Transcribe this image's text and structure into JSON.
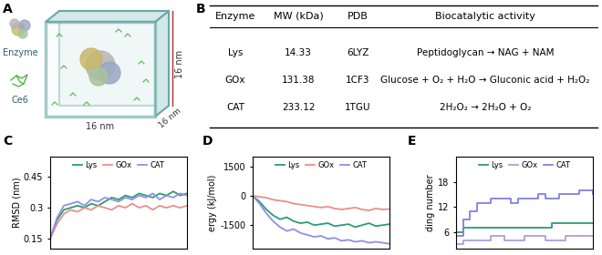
{
  "panels": {
    "A": {
      "label": "A",
      "type": "diagram",
      "enzyme_label": "Enzyme",
      "dye_label": "Ce6",
      "box_dimensions": [
        "16 nm",
        "16 nm",
        "16 nm"
      ]
    },
    "B": {
      "label": "B",
      "type": "table",
      "columns": [
        "Enzyme",
        "MW (kDa)",
        "PDB",
        "Biocatalytic activity"
      ],
      "rows": [
        [
          "Lys",
          "14.33",
          "6LYZ",
          "Peptidoglycan → NAG + NAM"
        ],
        [
          "GOx",
          "131.38",
          "1CF3",
          "Glucose + O₂ + H₂O → Gluconic acid + H₂O₂"
        ],
        [
          "CAT",
          "233.12",
          "1TGU",
          "2H₂O₂ → 2H₂O + O₂"
        ]
      ]
    }
  },
  "chart_data": [
    {
      "type": "line",
      "title": "C",
      "y_label": "RMSD (nm)",
      "x": [
        0,
        1,
        2,
        3,
        4,
        5,
        6,
        7,
        8,
        9,
        10,
        11,
        12,
        13,
        14,
        15,
        16,
        17,
        18,
        19,
        20
      ],
      "xlim": [
        0,
        20
      ],
      "ylim": [
        0.1,
        0.55
      ],
      "yticks": [
        0.15,
        0.3,
        0.45
      ],
      "tick_labels": "y",
      "legend": "upper center",
      "series": [
        {
          "name": "Lys",
          "color": "#2a9d72",
          "values": [
            0.15,
            0.24,
            0.29,
            0.3,
            0.31,
            0.3,
            0.32,
            0.31,
            0.33,
            0.35,
            0.34,
            0.36,
            0.35,
            0.37,
            0.36,
            0.35,
            0.37,
            0.36,
            0.38,
            0.36,
            0.37
          ]
        },
        {
          "name": "GOx",
          "color": "#e8908c",
          "values": [
            0.15,
            0.22,
            0.27,
            0.29,
            0.28,
            0.3,
            0.29,
            0.31,
            0.3,
            0.29,
            0.31,
            0.3,
            0.32,
            0.3,
            0.31,
            0.29,
            0.31,
            0.3,
            0.31,
            0.3,
            0.31
          ]
        },
        {
          "name": "CAT",
          "color": "#8f8fe6",
          "values": [
            0.15,
            0.25,
            0.31,
            0.32,
            0.33,
            0.31,
            0.34,
            0.33,
            0.35,
            0.34,
            0.33,
            0.35,
            0.34,
            0.36,
            0.35,
            0.37,
            0.34,
            0.36,
            0.35,
            0.37,
            0.36
          ]
        }
      ]
    },
    {
      "type": "line",
      "title": "D",
      "y_label": "ergy (kJ/mol)",
      "x": [
        0,
        1,
        2,
        3,
        4,
        5,
        6,
        7,
        8,
        9,
        10,
        11,
        12,
        13,
        14,
        15,
        16,
        17,
        18,
        19,
        20
      ],
      "xlim": [
        0,
        20
      ],
      "ylim": [
        -2700,
        2000
      ],
      "yticks": [
        -1500,
        0,
        1500
      ],
      "tick_labels": "y",
      "legend": "upper center",
      "series": [
        {
          "name": "Lys",
          "color": "#2a9d72",
          "values": [
            0,
            -300,
            -700,
            -1000,
            -1200,
            -1100,
            -1300,
            -1400,
            -1350,
            -1500,
            -1450,
            -1400,
            -1550,
            -1500,
            -1450,
            -1600,
            -1500,
            -1400,
            -1550,
            -1500,
            -1450
          ]
        },
        {
          "name": "GOx",
          "color": "#e8908c",
          "values": [
            0,
            -50,
            -100,
            -200,
            -250,
            -300,
            -400,
            -450,
            -500,
            -550,
            -600,
            -550,
            -650,
            -700,
            -650,
            -600,
            -700,
            -750,
            -650,
            -700,
            -680
          ]
        },
        {
          "name": "CAT",
          "color": "#8f8fe6",
          "values": [
            0,
            -400,
            -900,
            -1300,
            -1600,
            -1800,
            -1700,
            -1900,
            -2000,
            -2100,
            -2050,
            -2200,
            -2150,
            -2300,
            -2250,
            -2350,
            -2300,
            -2400,
            -2350,
            -2400,
            -2450
          ]
        }
      ]
    },
    {
      "type": "step",
      "title": "E",
      "y_label": "ding number",
      "x": [
        0,
        1,
        2,
        3,
        4,
        5,
        6,
        7,
        8,
        9,
        10,
        11,
        12,
        13,
        14,
        15,
        16,
        17,
        18,
        19,
        20
      ],
      "xlim": [
        0,
        20
      ],
      "ylim": [
        2,
        24
      ],
      "yticks": [
        6,
        12,
        18
      ],
      "tick_labels": "y",
      "legend": "upper center",
      "series": [
        {
          "name": "Lys",
          "color": "#2a9d72",
          "values": [
            6,
            7,
            7,
            7,
            7,
            7,
            7,
            7,
            7,
            7,
            7,
            7,
            7,
            7,
            8,
            8,
            8,
            8,
            8,
            8,
            8
          ]
        },
        {
          "name": "GOx",
          "color": "#b39ddb",
          "values": [
            3,
            4,
            4,
            4,
            4,
            5,
            5,
            4,
            4,
            4,
            5,
            5,
            5,
            4,
            4,
            4,
            5,
            5,
            5,
            5,
            5
          ]
        },
        {
          "name": "CAT",
          "color": "#8080e0",
          "values": [
            5,
            9,
            11,
            13,
            13,
            14,
            14,
            14,
            13,
            14,
            14,
            14,
            15,
            14,
            14,
            15,
            15,
            15,
            16,
            16,
            15
          ]
        }
      ]
    }
  ]
}
